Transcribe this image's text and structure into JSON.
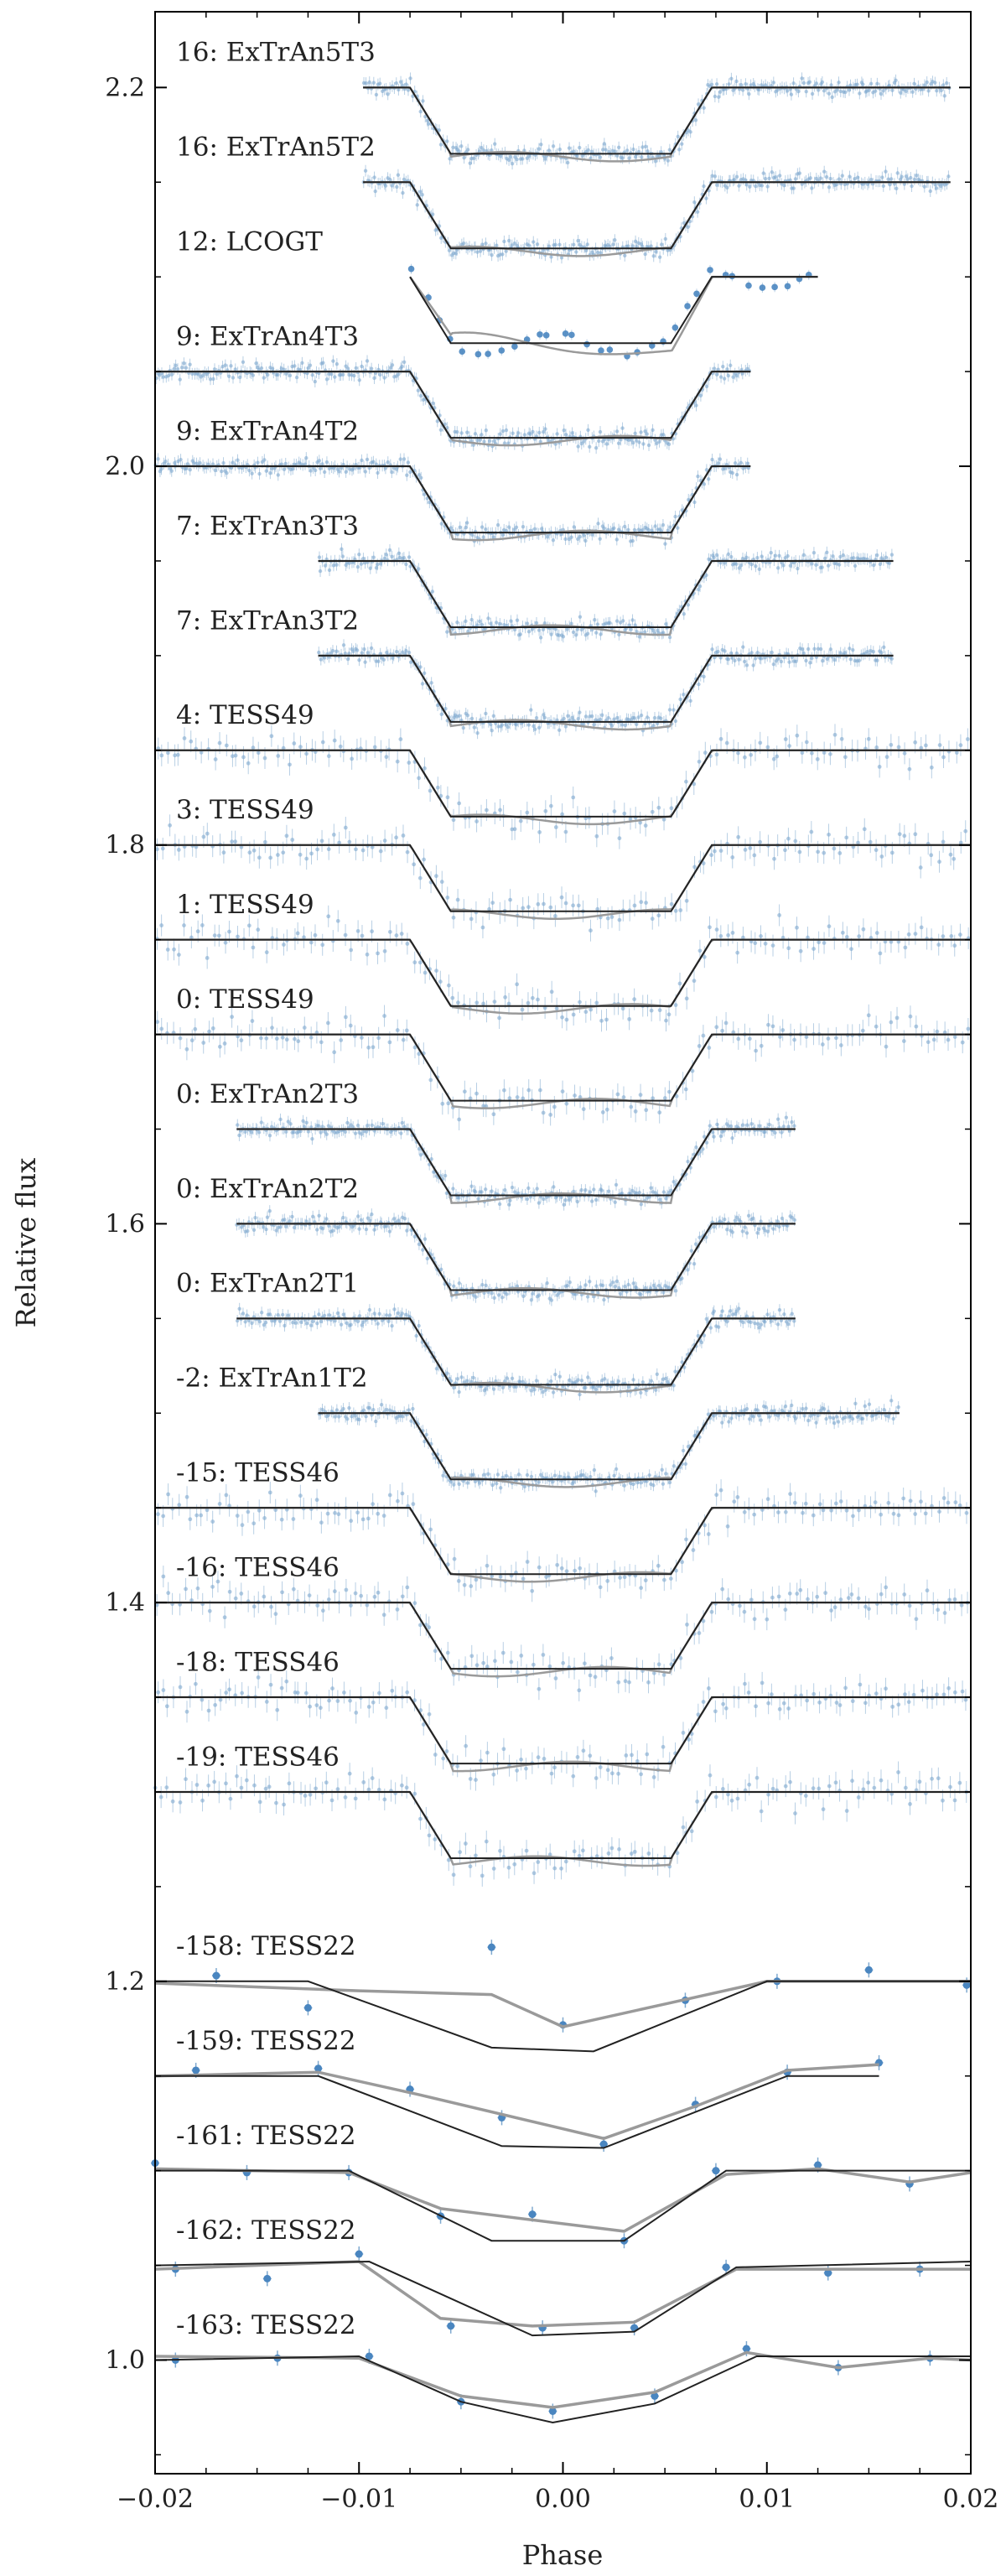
{
  "chart_data": {
    "type": "line",
    "xlabel": "Phase",
    "ylabel": "Relative flux",
    "xlim": [
      -0.02,
      0.02
    ],
    "ylim": [
      0.94,
      2.24
    ],
    "x_ticks": [
      -0.02,
      -0.01,
      0.0,
      0.01,
      0.02
    ],
    "x_tick_labels": [
      "−0.02",
      "−0.01",
      "0.00",
      "0.01",
      "0.02"
    ],
    "y_ticks": [
      1.0,
      1.2,
      1.4,
      1.6,
      1.8,
      2.0,
      2.2
    ],
    "y_tick_labels": [
      "1.0",
      "1.2",
      "1.4",
      "1.6",
      "1.8",
      "2.0",
      "2.2"
    ],
    "grid": false,
    "colors": {
      "data": "#7fa9cf",
      "model": "#222222",
      "fit": "#9a9a9a"
    },
    "transit": {
      "ingress_start": -0.0075,
      "ingress_end": -0.0055,
      "egress_start": 0.0053,
      "egress_end": 0.0073
    },
    "series": [
      {
        "name": "16: ExTrAn5T3",
        "baseline": 2.2,
        "depth": 0.035,
        "x_range": [
          -0.0098,
          0.019
        ],
        "kind": "dense"
      },
      {
        "name": "16: ExTrAn5T2",
        "baseline": 2.15,
        "depth": 0.035,
        "x_range": [
          -0.0098,
          0.019
        ],
        "kind": "dense"
      },
      {
        "name": "12: LCOGT",
        "baseline": 2.1,
        "depth": 0.035,
        "x_range": [
          -0.0075,
          0.0125
        ],
        "kind": "sparse"
      },
      {
        "name": "9: ExTrAn4T3",
        "baseline": 2.05,
        "depth": 0.035,
        "x_range": [
          -0.02,
          0.0092
        ],
        "kind": "dense"
      },
      {
        "name": "9: ExTrAn4T2",
        "baseline": 2.0,
        "depth": 0.035,
        "x_range": [
          -0.02,
          0.0092
        ],
        "kind": "dense"
      },
      {
        "name": "7: ExTrAn3T3",
        "baseline": 1.95,
        "depth": 0.035,
        "x_range": [
          -0.012,
          0.0162
        ],
        "kind": "dense"
      },
      {
        "name": "7: ExTrAn3T2",
        "baseline": 1.9,
        "depth": 0.035,
        "x_range": [
          -0.012,
          0.0162
        ],
        "kind": "dense"
      },
      {
        "name": "4: TESS49",
        "baseline": 1.85,
        "depth": 0.035,
        "x_range": [
          -0.02,
          0.02
        ],
        "kind": "tess"
      },
      {
        "name": "3: TESS49",
        "baseline": 1.8,
        "depth": 0.035,
        "x_range": [
          -0.02,
          0.02
        ],
        "kind": "tess"
      },
      {
        "name": "1: TESS49",
        "baseline": 1.75,
        "depth": 0.035,
        "x_range": [
          -0.02,
          0.02
        ],
        "kind": "tess"
      },
      {
        "name": "0: TESS49",
        "baseline": 1.7,
        "depth": 0.035,
        "x_range": [
          -0.02,
          0.02
        ],
        "kind": "tess"
      },
      {
        "name": "0: ExTrAn2T3",
        "baseline": 1.65,
        "depth": 0.035,
        "x_range": [
          -0.016,
          0.0114
        ],
        "kind": "dense"
      },
      {
        "name": "0: ExTrAn2T2",
        "baseline": 1.6,
        "depth": 0.035,
        "x_range": [
          -0.016,
          0.0114
        ],
        "kind": "dense"
      },
      {
        "name": "0: ExTrAn2T1",
        "baseline": 1.55,
        "depth": 0.035,
        "x_range": [
          -0.016,
          0.0114
        ],
        "kind": "dense"
      },
      {
        "name": "-2: ExTrAn1T2",
        "baseline": 1.5,
        "depth": 0.035,
        "x_range": [
          -0.012,
          0.0165
        ],
        "kind": "dense"
      },
      {
        "name": "-15: TESS46",
        "baseline": 1.45,
        "depth": 0.035,
        "x_range": [
          -0.02,
          0.02
        ],
        "kind": "tess"
      },
      {
        "name": "-16: TESS46",
        "baseline": 1.4,
        "depth": 0.035,
        "x_range": [
          -0.02,
          0.02
        ],
        "kind": "tess"
      },
      {
        "name": "-18: TESS46",
        "baseline": 1.35,
        "depth": 0.035,
        "x_range": [
          -0.02,
          0.02
        ],
        "kind": "tess"
      },
      {
        "name": "-19: TESS46",
        "baseline": 1.3,
        "depth": 0.035,
        "x_range": [
          -0.02,
          0.02
        ],
        "kind": "tess"
      },
      {
        "name": "-158: TESS22",
        "baseline": 1.2,
        "kind": "tess22",
        "model_x": [
          -0.02,
          -0.0125,
          -0.0035,
          0.0015,
          0.01,
          0.02
        ],
        "model_y": [
          1.2,
          1.2,
          1.165,
          1.163,
          1.2,
          1.2
        ],
        "fit_x": [
          -0.02,
          -0.01,
          -0.0035,
          0.0,
          0.005,
          0.01,
          0.02
        ],
        "fit_y": [
          1.199,
          1.195,
          1.193,
          1.176,
          1.188,
          1.2,
          1.2
        ],
        "points_x": [
          -0.017,
          -0.0125,
          -0.0035,
          0.0,
          0.006,
          0.0105,
          0.015,
          0.0198
        ],
        "points_y": [
          1.203,
          1.186,
          1.218,
          1.177,
          1.19,
          1.2,
          1.206,
          1.198
        ]
      },
      {
        "name": "-159: TESS22",
        "baseline": 1.15,
        "kind": "tess22",
        "model_x": [
          -0.02,
          -0.012,
          -0.003,
          0.002,
          0.011,
          0.0155
        ],
        "model_y": [
          1.15,
          1.15,
          1.113,
          1.112,
          1.15,
          1.15
        ],
        "fit_x": [
          -0.02,
          -0.012,
          -0.007,
          0.002,
          0.0065,
          0.011,
          0.0155
        ],
        "fit_y": [
          1.15,
          1.152,
          1.14,
          1.117,
          1.134,
          1.153,
          1.156
        ],
        "points_x": [
          -0.018,
          -0.012,
          -0.0075,
          -0.003,
          0.002,
          0.0065,
          0.011,
          0.0155
        ],
        "points_y": [
          1.153,
          1.154,
          1.143,
          1.128,
          1.114,
          1.135,
          1.152,
          1.157
        ]
      },
      {
        "name": "-161: TESS22",
        "baseline": 1.1,
        "kind": "tess22",
        "model_x": [
          -0.02,
          -0.0105,
          -0.0035,
          0.003,
          0.008,
          0.02
        ],
        "model_y": [
          1.1,
          1.1,
          1.063,
          1.063,
          1.1,
          1.1
        ],
        "fit_x": [
          -0.02,
          -0.0105,
          -0.006,
          0.003,
          0.008,
          0.0125,
          0.017,
          0.02
        ],
        "fit_y": [
          1.101,
          1.099,
          1.08,
          1.068,
          1.098,
          1.101,
          1.094,
          1.099
        ],
        "points_x": [
          -0.02,
          -0.0155,
          -0.0105,
          -0.006,
          -0.0015,
          0.003,
          0.0075,
          0.0125,
          0.017
        ],
        "points_y": [
          1.104,
          1.099,
          1.099,
          1.076,
          1.077,
          1.063,
          1.1,
          1.103,
          1.093
        ]
      },
      {
        "name": "-162: TESS22",
        "baseline": 1.05,
        "kind": "tess22",
        "model_x": [
          -0.02,
          -0.0095,
          -0.0015,
          0.0035,
          0.0085,
          0.02
        ],
        "model_y": [
          1.05,
          1.052,
          1.013,
          1.015,
          1.049,
          1.052
        ],
        "fit_x": [
          -0.02,
          -0.01,
          -0.006,
          -0.0015,
          0.0035,
          0.0085,
          0.02
        ],
        "fit_y": [
          1.048,
          1.052,
          1.022,
          1.018,
          1.02,
          1.048,
          1.048
        ],
        "points_x": [
          -0.019,
          -0.0145,
          -0.01,
          -0.0055,
          -0.001,
          0.0035,
          0.008,
          0.013,
          0.0175
        ],
        "points_y": [
          1.048,
          1.043,
          1.056,
          1.018,
          1.017,
          1.017,
          1.049,
          1.046,
          1.048
        ]
      },
      {
        "name": "-163: TESS22",
        "baseline": 1.0,
        "kind": "tess22",
        "model_x": [
          -0.02,
          -0.01,
          -0.005,
          -0.0005,
          0.0045,
          0.0095,
          0.02
        ],
        "model_y": [
          1.0,
          1.002,
          0.978,
          0.967,
          0.977,
          1.002,
          1.002
        ],
        "fit_x": [
          -0.02,
          -0.01,
          -0.005,
          -0.0005,
          0.0045,
          0.009,
          0.0135,
          0.018,
          0.02
        ],
        "fit_y": [
          1.002,
          1.001,
          0.981,
          0.975,
          0.983,
          1.004,
          0.996,
          1.001,
          1.0
        ],
        "points_x": [
          -0.019,
          -0.014,
          -0.0095,
          -0.005,
          -0.0005,
          0.0045,
          0.009,
          0.0135,
          0.018
        ],
        "points_y": [
          1.0,
          1.001,
          1.002,
          0.978,
          0.973,
          0.981,
          1.006,
          0.996,
          1.001
        ]
      }
    ]
  }
}
